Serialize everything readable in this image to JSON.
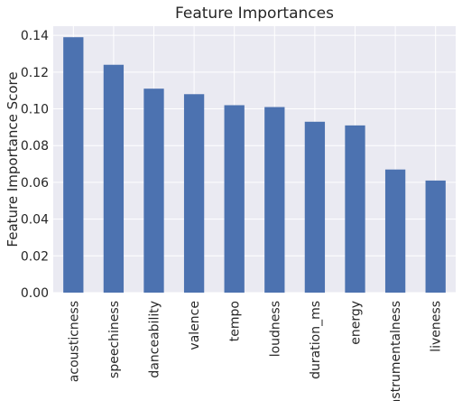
{
  "chart_data": {
    "type": "bar",
    "title": "Feature Importances",
    "xlabel": "",
    "ylabel": "Feature Importance Score",
    "categories": [
      "acousticness",
      "speechiness",
      "danceability",
      "valence",
      "tempo",
      "loudness",
      "duration_ms",
      "energy",
      "instrumentalness",
      "liveness"
    ],
    "values": [
      0.139,
      0.124,
      0.111,
      0.108,
      0.102,
      0.101,
      0.093,
      0.091,
      0.067,
      0.061
    ],
    "ylim": [
      0,
      0.145
    ],
    "yticks": [
      "0.00",
      "0.02",
      "0.04",
      "0.06",
      "0.08",
      "0.10",
      "0.12",
      "0.14"
    ],
    "grid": true,
    "colors": {
      "bar": "#4c72b0",
      "plot_bg": "#eaeaf2",
      "grid": "#ffffff"
    }
  }
}
